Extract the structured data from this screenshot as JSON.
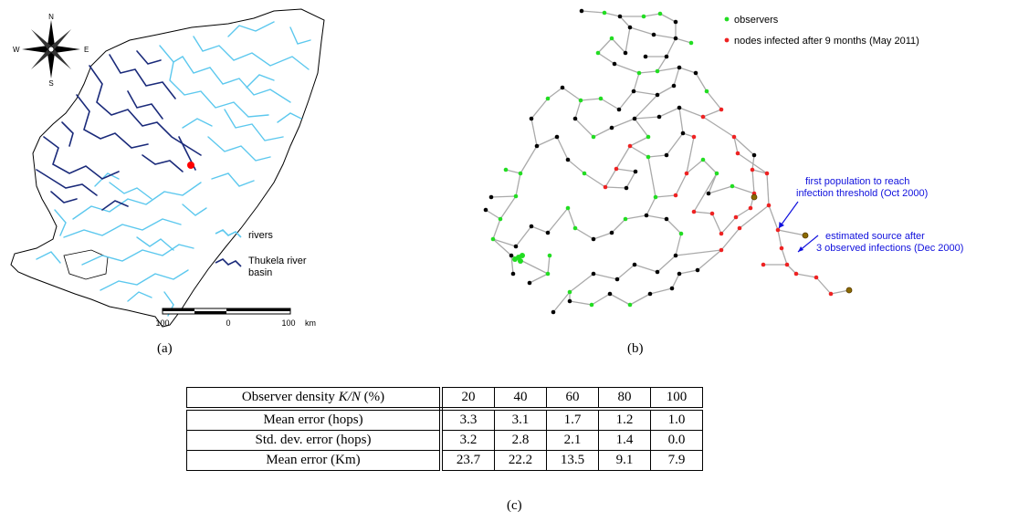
{
  "panel_a": {
    "caption": "(a)",
    "compass": {
      "n": "N",
      "s": "S",
      "e": "E",
      "w": "W"
    },
    "legend": [
      {
        "label": "rivers",
        "color": "#5cc8ee"
      },
      {
        "label": "Thukela river",
        "label2": "basin",
        "color": "#1a2a7a"
      }
    ],
    "scale": {
      "left": "100",
      "mid": "0",
      "right": "100",
      "unit": "km"
    },
    "marker_color": "#ff0000"
  },
  "panel_b": {
    "caption": "(b)",
    "legend": [
      {
        "label": "observers",
        "color": "#22dd22"
      },
      {
        "label": "nodes infected after 9 months (May 2011)",
        "color": "#ee2222"
      }
    ],
    "annotations": [
      {
        "line1": "first population to reach",
        "line2": "infection threshold (Oct 2000)"
      },
      {
        "line1": "estimated source after",
        "line2": "3 observed infections (Dec 2000)"
      }
    ],
    "annotation_color": "#1010dd",
    "node_color": "#000000",
    "edge_color": "#aaaaaa"
  },
  "panel_c": {
    "caption": "(c)",
    "header": {
      "label_text": "Observer density ",
      "label_math": "K/N",
      "label_unit": " (%)",
      "values": [
        "20",
        "40",
        "60",
        "80",
        "100"
      ]
    },
    "rows": [
      {
        "label": "Mean error (hops)",
        "values": [
          "3.3",
          "3.1",
          "1.7",
          "1.2",
          "1.0"
        ]
      },
      {
        "label": "Std. dev. error (hops)",
        "values": [
          "3.2",
          "2.8",
          "2.1",
          "1.4",
          "0.0"
        ]
      },
      {
        "label": "Mean error (Km)",
        "values": [
          "23.7",
          "22.2",
          "13.5",
          "9.1",
          "7.9"
        ]
      }
    ]
  }
}
